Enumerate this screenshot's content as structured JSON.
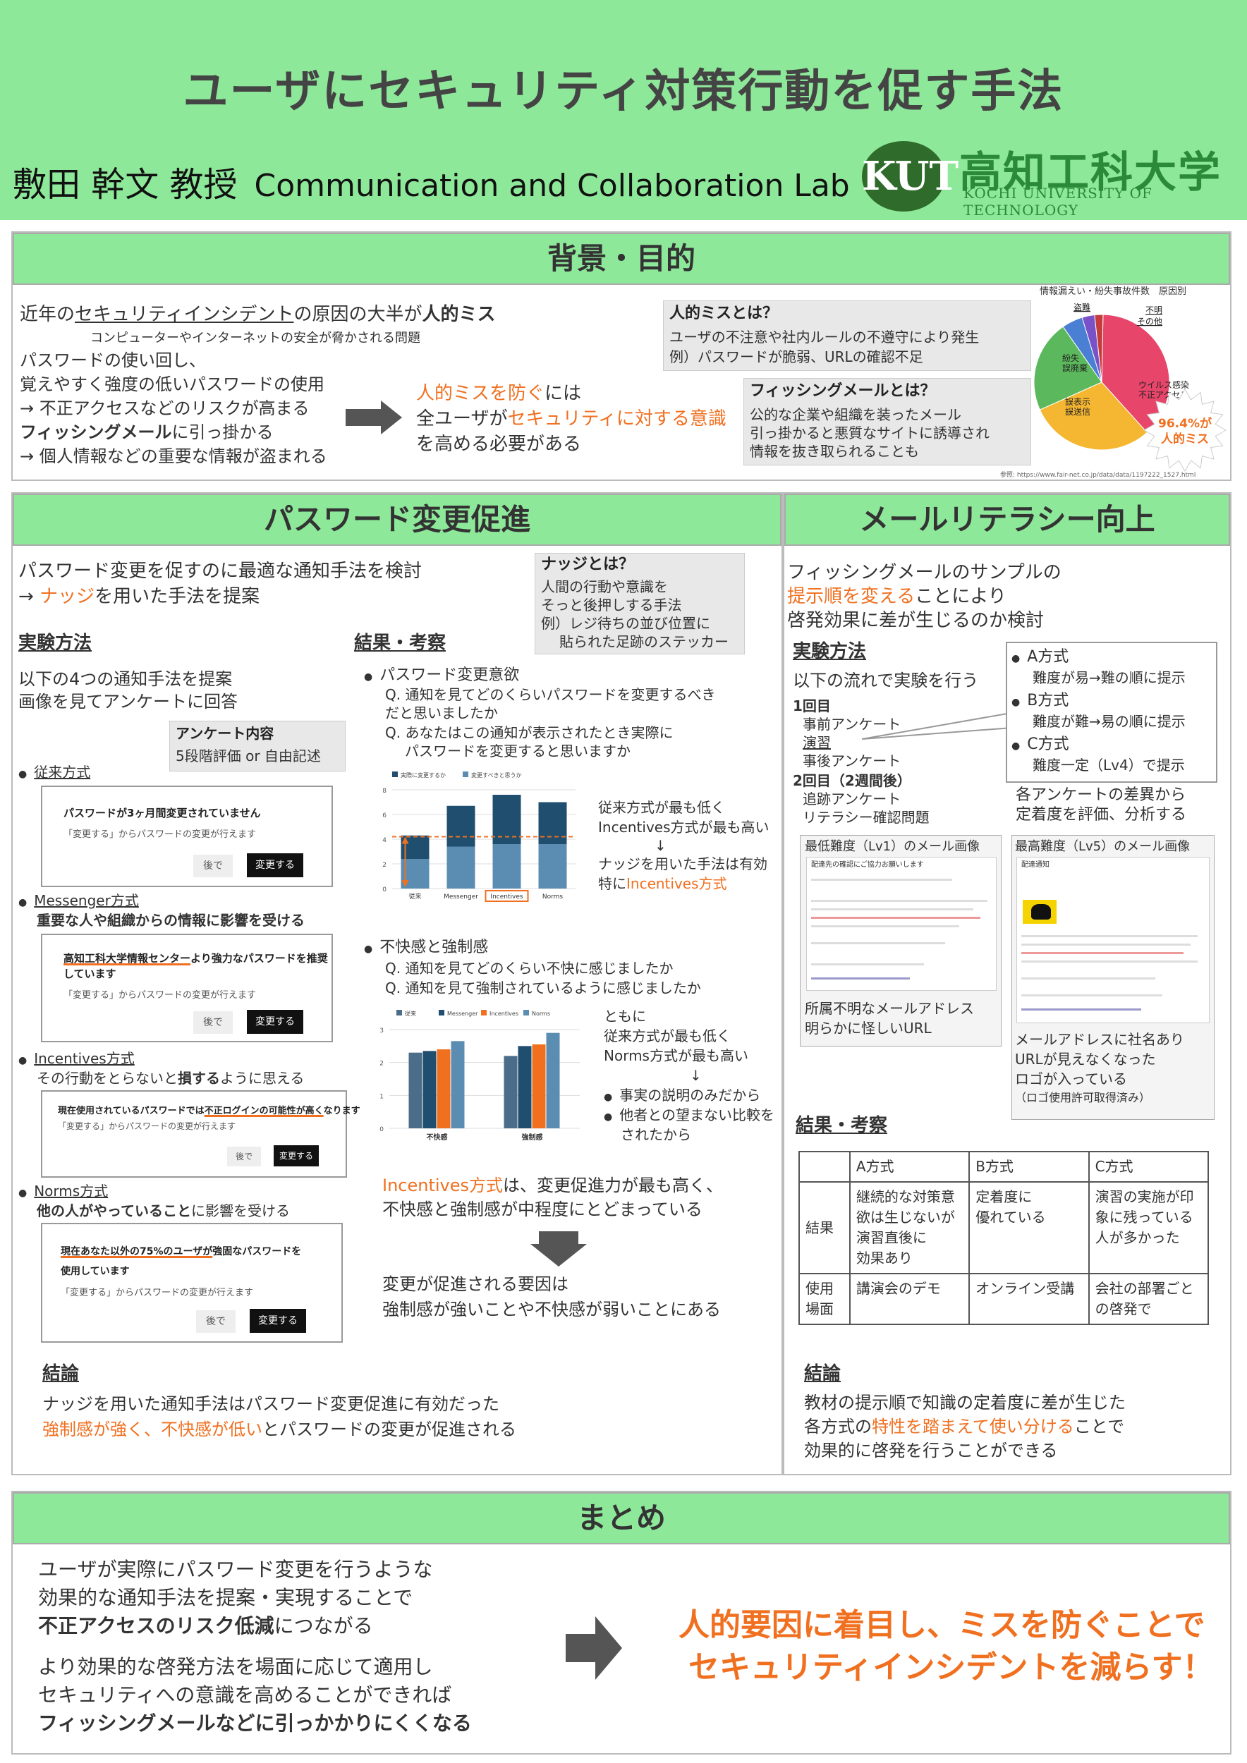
{
  "header": {
    "title": "ユーザにセキュリティ対策行動を促す手法",
    "author": "敷田 幹文 教授",
    "lab": "Communication and Collaboration Lab",
    "logo_mark": "KUT",
    "logo_jp": "高知工科大学",
    "logo_en": "KOCHI UNIVERSITY OF TECHNOLOGY"
  },
  "background": {
    "heading": "背景・目的",
    "line1_a": "近年の",
    "line1_b": "セキュリティインシデント",
    "line1_c": "の原因の大半が",
    "line1_d": "人的ミス",
    "line1_sub": "コンピューターやインターネットの安全が脅かされる問題",
    "line2": "パスワードの使い回し、",
    "line3": "覚えやすく強度の低いパスワードの使用",
    "line4": "→ 不正アクセスなどのリスクが高まる",
    "line5_a": "フィッシングメール",
    "line5_b": "に引っ掛かる",
    "line6": "→ 個人情報などの重要な情報が盗まれる",
    "mid1_a": "人的ミスを防ぐ",
    "mid1_b": "には",
    "mid2_a": "全ユーザが",
    "mid2_b": "セキュリティに対する意識",
    "mid3": "を高める必要がある",
    "human_error_title": "人的ミスとは？",
    "human_error_l1": "ユーザの不注意や社内ルールの不遵守により発生",
    "human_error_l2": "例）パスワードが脆弱、URLの確認不足",
    "phishing_title": "フィッシングメールとは？",
    "phishing_l1": "公的な企業や組織を装ったメール",
    "phishing_l2": "引っ掛かると悪質なサイトに誘導され",
    "phishing_l3": "情報を抜き取られることも",
    "pie_title": "情報漏えい・紛失事故件数　原因別",
    "pie_labels": [
      "盗難",
      "不明",
      "その他",
      "紛失\n誤廃棄",
      "ウイルス感染\n不正アクセス",
      "誤表示\n誤送信"
    ],
    "pie_burst": "96.4%が\n人的ミス",
    "pie_ref": "参照: https://www.fair-net.co.jp/data/data/1197222_1527.html"
  },
  "pie_data": {
    "type": "pie",
    "slices": [
      {
        "label": "ウイルス感染 不正アクセス",
        "value": 38,
        "color": "#e8456a"
      },
      {
        "label": "誤表示 誤送信",
        "value": 30,
        "color": "#f5b731"
      },
      {
        "label": "紛失 誤廃棄",
        "value": 22,
        "color": "#5cb85c"
      },
      {
        "label": "盗難",
        "value": 5,
        "color": "#4a7fd4"
      },
      {
        "label": "不明",
        "value": 3,
        "color": "#7a52c7"
      },
      {
        "label": "その他",
        "value": 2,
        "color": "#c43c3c"
      }
    ]
  },
  "password": {
    "heading": "パスワード変更促進",
    "intro1": "パスワード変更を促すのに最適な通知手法を検討",
    "intro2_a": "→ ",
    "intro2_b": "ナッジ",
    "intro2_c": "を用いた手法を提案",
    "nudge_title": "ナッジとは？",
    "nudge_l1": "人間の行動や意識を",
    "nudge_l2": "そっと後押しする手法",
    "nudge_l3": "例）レジ待ちの並び位置に",
    "nudge_l4": "貼られた足跡のステッカー",
    "method_heading": "実験方法",
    "method_l1": "以下の4つの通知手法を提案",
    "method_l2": "画像を見てアンケートに回答",
    "survey_title": "アンケート内容",
    "survey_l1": "5段階評価 or 自由記述",
    "m1_name": "従来方式",
    "m1_msg": "パスワードが3ヶ月間変更されていません",
    "m2_name": "Messenger方式",
    "m2_desc": "重要な人や組織からの情報に影響を受ける",
    "m2_msg_a": "高知工科大学情報センター",
    "m2_msg_b": "より強力なパスワードを推奨",
    "m2_msg_c": "しています",
    "m3_name": "Incentives方式",
    "m3_desc_a": "その行動をとらないと",
    "m3_desc_b": "損する",
    "m3_desc_c": "ように思える",
    "m3_msg_a": "現在使用されているパスワードでは",
    "m3_msg_b": "不正ログインの可能性が高く",
    "m3_msg_c": "なります",
    "m4_name": "Norms方式",
    "m4_desc_a": "他の人がやっていること",
    "m4_desc_b": "に影響を受ける",
    "m4_msg_a": "現在あなた以外の75%のユーザが",
    "m4_msg_b": "強固なパスワードを",
    "m4_msg_c": "使用しています",
    "mock_sub": "「変更する」からパスワードの変更が行えます",
    "btn_later": "後で",
    "btn_change": "変更する",
    "result_heading": "結果・考察",
    "q1_title": "パスワード変更意欲",
    "q1_l1": "Q. 通知を見てどのくらいパスワードを変更するべき",
    "q1_l2": "だと思いましたか",
    "q1_l3": "Q. あなたはこの通知が表示されたとき実際に",
    "q1_l4": "パスワードを変更すると思いますか",
    "c1_note1": "従来方式が最も低く",
    "c1_note2": "Incentives方式が最も高い",
    "c1_note3": "↓",
    "c1_note4": "ナッジを用いた手法は有効",
    "c1_note5_a": "特に",
    "c1_note5_b": "Incentives方式",
    "q2_title": "不快感と強制感",
    "q2_l1": "Q. 通知を見てどのくらい不快に感じましたか",
    "q2_l2": "Q. 通知を見て強制されているように感じましたか",
    "c2_note1": "ともに",
    "c2_note2": "従来方式が最も低く",
    "c2_note3": "Norms方式が最も高い",
    "c2_note4": "↓",
    "c2_note5": "事実の説明のみだから",
    "c2_note6": "他者との望まない比較を",
    "c2_note7": "されたから",
    "summary1_a": "Incentives方式",
    "summary1_b": "は、変更促進力が最も高く、",
    "summary2": "不快感と強制感が中程度にとどまっている",
    "summary3": "変更が促進される要因は",
    "summary4": "強制感が強いことや不快感が弱いことにある",
    "conclusion_heading": "結論",
    "conclusion1": "ナッジを用いた通知手法はパスワード変更促進に有効だった",
    "conclusion2_a": "強制感が強く、不快感が低い",
    "conclusion2_b": "とパスワードの変更が促進される"
  },
  "chart_data": [
    {
      "type": "bar",
      "categories": [
        "従来",
        "Messenger",
        "Incentives",
        "Norms"
      ],
      "series": [
        {
          "name": "実際に変更するか",
          "values": [
            4.3,
            6.7,
            7.6,
            7.0
          ],
          "color": "#1f4e6e"
        },
        {
          "name": "変更すべきと思うか",
          "values": [
            2.4,
            3.4,
            3.6,
            3.6
          ],
          "color": "#5b8db3"
        }
      ],
      "ylim": [
        0,
        8
      ],
      "yticks": [
        0,
        2,
        4,
        6,
        8
      ],
      "reference_line": 4.2
    },
    {
      "type": "bar",
      "categories": [
        "不快感",
        "強制感"
      ],
      "series": [
        {
          "name": "従来",
          "values": [
            2.3,
            2.2
          ],
          "color": "#4b6d8a"
        },
        {
          "name": "Messenger",
          "values": [
            2.35,
            2.5
          ],
          "color": "#1f4e6e"
        },
        {
          "name": "Incentives",
          "values": [
            2.4,
            2.55
          ],
          "color": "#f07020"
        },
        {
          "name": "Norms",
          "values": [
            2.65,
            2.9
          ],
          "color": "#5b8db3"
        }
      ],
      "ylim": [
        0,
        3
      ],
      "yticks": [
        0,
        1,
        2,
        3
      ]
    }
  ],
  "mail": {
    "heading": "メールリテラシー向上",
    "intro1": "フィッシングメールのサンプルの",
    "intro2_a": "提示順を変える",
    "intro2_b": "ことにより",
    "intro3": "啓発効果に差が生じるのか検討",
    "method_heading": "実験方法",
    "method_l1": "以下の流れで実験を行う",
    "r1": "1回目",
    "r1_a": "事前アンケート",
    "r1_b": "演習",
    "r1_c": "事後アンケート",
    "r2": "2回目（2週間後）",
    "r2_a": "追跡アンケート",
    "r2_b": "リテラシー確認問題",
    "a_name": "A方式",
    "a_desc": "難度が易→難の順に提示",
    "b_name": "B方式",
    "b_desc": "難度が難→易の順に提示",
    "c_name": "C方式",
    "c_desc": "難度一定（Lv4）で提示",
    "eval1": "各アンケートの差異から",
    "eval2": "定着度を評価、分析する",
    "lv1_title": "最低難度（Lv1）のメール画像",
    "lv1_subject": "配達先の確認にご協力お願いします",
    "lv1_cap1": "所属不明なメールアドレス",
    "lv1_cap2": "明らかに怪しいURL",
    "lv5_title": "最高難度（Lv5）のメール画像",
    "lv5_subject": "配達通知",
    "lv5_cap1": "メールアドレスに社名あり",
    "lv5_cap2": "URLが見えなくなった",
    "lv5_cap3": "ロゴが入っている",
    "lv5_cap4": "（ロゴ使用許可取得済み）",
    "result_heading": "結果・考察",
    "table_head": [
      "",
      "A方式",
      "B方式",
      "C方式"
    ],
    "table_row1": [
      "結果",
      "継続的な対策意\n欲は生じないが\n演習直後に\n効果あり",
      "定着度に\n優れている",
      "演習の実施が印\n象に残っている\n人が多かった"
    ],
    "table_row2": [
      "使用\n場面",
      "講演会のデモ",
      "オンライン受講",
      "会社の部署ごと\nの啓発で"
    ],
    "conclusion_heading": "結論",
    "conclusion1": "教材の提示順で知識の定着度に差が生じた",
    "conclusion2_a": "各方式の",
    "conclusion2_b": "特性を踏まえて使い分ける",
    "conclusion2_c": "ことで",
    "conclusion3": "効果的に啓発を行うことができる"
  },
  "summary": {
    "heading": "まとめ",
    "l1": "ユーザが実際にパスワード変更を行うような",
    "l2": "効果的な通知手法を提案・実現することで",
    "l3_a": "不正アクセスのリスク低減",
    "l3_b": "につながる",
    "l4": "より効果的な啓発方法を場面に応じて適用し",
    "l5": "セキュリティへの意識を高めることができれば",
    "l6_a": "フィッシングメールなどに引っかかりにくくなる",
    "big1": "人的要因に着目し、ミスを防ぐことで",
    "big2": "セキュリティインシデントを減らす！"
  }
}
